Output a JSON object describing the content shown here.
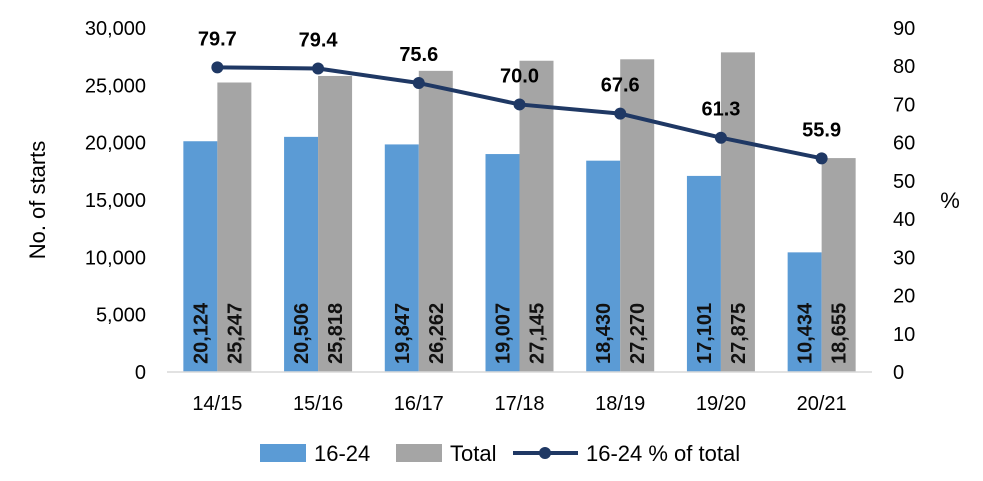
{
  "chart_data": {
    "type": "bar",
    "categories": [
      "14/15",
      "15/16",
      "16/17",
      "17/18",
      "18/19",
      "19/20",
      "20/21"
    ],
    "series": [
      {
        "name": "16-24",
        "type": "bar",
        "axis": "left",
        "color": "#5B9BD5",
        "values": [
          20124,
          20506,
          19847,
          19007,
          18430,
          17101,
          10434
        ],
        "labels": [
          "20,124",
          "20,506",
          "19,847",
          "19,007",
          "18,430",
          "17,101",
          "10,434"
        ]
      },
      {
        "name": "Total",
        "type": "bar",
        "axis": "left",
        "color": "#A5A5A5",
        "values": [
          25247,
          25818,
          26262,
          27145,
          27270,
          27875,
          18655
        ],
        "labels": [
          "25,247",
          "25,818",
          "26,262",
          "27,145",
          "27,270",
          "27,875",
          "18,655"
        ]
      },
      {
        "name": "16-24 % of total",
        "type": "line",
        "axis": "right",
        "color": "#1F3864",
        "values": [
          79.7,
          79.4,
          75.6,
          70.0,
          67.6,
          61.3,
          55.9
        ],
        "labels": [
          "79.7",
          "79.4",
          "75.6",
          "70.0",
          "67.6",
          "61.3",
          "55.9"
        ]
      }
    ],
    "ylabel": "No. of starts",
    "y2label": "%",
    "ylim": [
      0,
      30000
    ],
    "y2lim": [
      0,
      90
    ],
    "yticks": [
      "0",
      "5,000",
      "10,000",
      "15,000",
      "20,000",
      "25,000",
      "30,000"
    ],
    "y2ticks": [
      "0",
      "10",
      "20",
      "30",
      "40",
      "50",
      "60",
      "70",
      "80",
      "90"
    ],
    "grid": false,
    "legend_position": "bottom"
  }
}
